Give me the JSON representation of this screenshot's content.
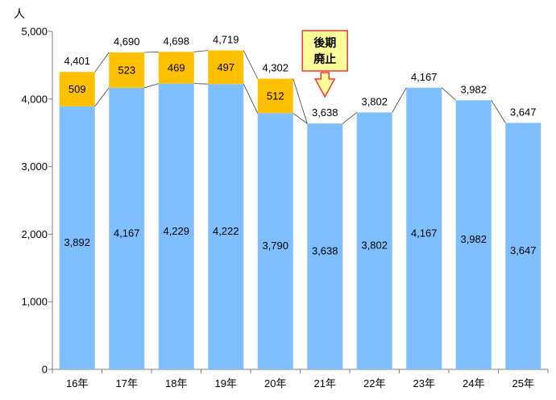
{
  "chart_data": {
    "type": "bar",
    "stacked": true,
    "y_unit": "人",
    "ylim": [
      0,
      5000
    ],
    "yticks": [
      0,
      1000,
      2000,
      3000,
      4000,
      5000
    ],
    "ytick_labels": [
      "0",
      "1,000",
      "2,000",
      "3,000",
      "4,000",
      "5,000"
    ],
    "categories": [
      "16年",
      "17年",
      "18年",
      "19年",
      "20年",
      "21年",
      "22年",
      "23年",
      "24年",
      "25年"
    ],
    "series": [
      {
        "color": "#7fbfff",
        "values": [
          3892,
          4167,
          4229,
          4222,
          3790,
          3638,
          3802,
          4167,
          3982,
          3647
        ],
        "labels": [
          "3,892",
          "4,167",
          "4,229",
          "4,222",
          "3,790",
          "3,638",
          "3,802",
          "4,167",
          "3,982",
          "3,647"
        ]
      },
      {
        "color": "#ffc000",
        "values": [
          509,
          523,
          469,
          497,
          512,
          null,
          null,
          null,
          null,
          null
        ],
        "labels": [
          "509",
          "523",
          "469",
          "497",
          "512",
          "",
          "",
          "",
          "",
          ""
        ]
      }
    ],
    "totals": [
      4401,
      4690,
      4698,
      4719,
      4302,
      3638,
      3802,
      4167,
      3982,
      3647
    ],
    "total_labels": [
      "4,401",
      "4,690",
      "4,698",
      "4,719",
      "4,302",
      "3,638",
      "3,802",
      "4,167",
      "3,982",
      "3,647"
    ],
    "annotation": {
      "text_lines": [
        "後期",
        "廃止"
      ],
      "category_index": 5,
      "fill": "#ffff99",
      "border": "#ff3333"
    },
    "grid": false,
    "legend": "none",
    "xlabel": "",
    "ylabel": "",
    "title": ""
  }
}
